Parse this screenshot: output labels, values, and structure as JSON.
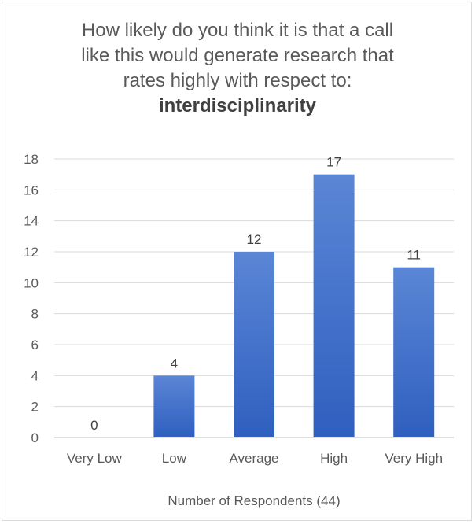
{
  "chart_data": {
    "type": "bar",
    "title_lines": [
      "How likely do you think it is that a call",
      "like this would generate research that",
      "rates highly with respect to:"
    ],
    "title_bold": "interdisciplinarity",
    "categories": [
      "Very Low",
      "Low",
      "Average",
      "High",
      "Very High"
    ],
    "values": [
      0,
      4,
      12,
      17,
      11
    ],
    "data_labels": [
      "0",
      "4",
      "12",
      "17",
      "11"
    ],
    "xlabel": "Number of Respondents (44)",
    "ylabel": "",
    "ylim": [
      0,
      18
    ],
    "y_ticks": [
      0,
      2,
      4,
      6,
      8,
      10,
      12,
      14,
      16,
      18
    ],
    "grid": true,
    "legend": "none",
    "colors": {
      "bar_top": "#5b86d6",
      "bar_bottom": "#2f5fbf",
      "grid": "#d9d9d9",
      "axis": "#bfbfbf"
    }
  }
}
